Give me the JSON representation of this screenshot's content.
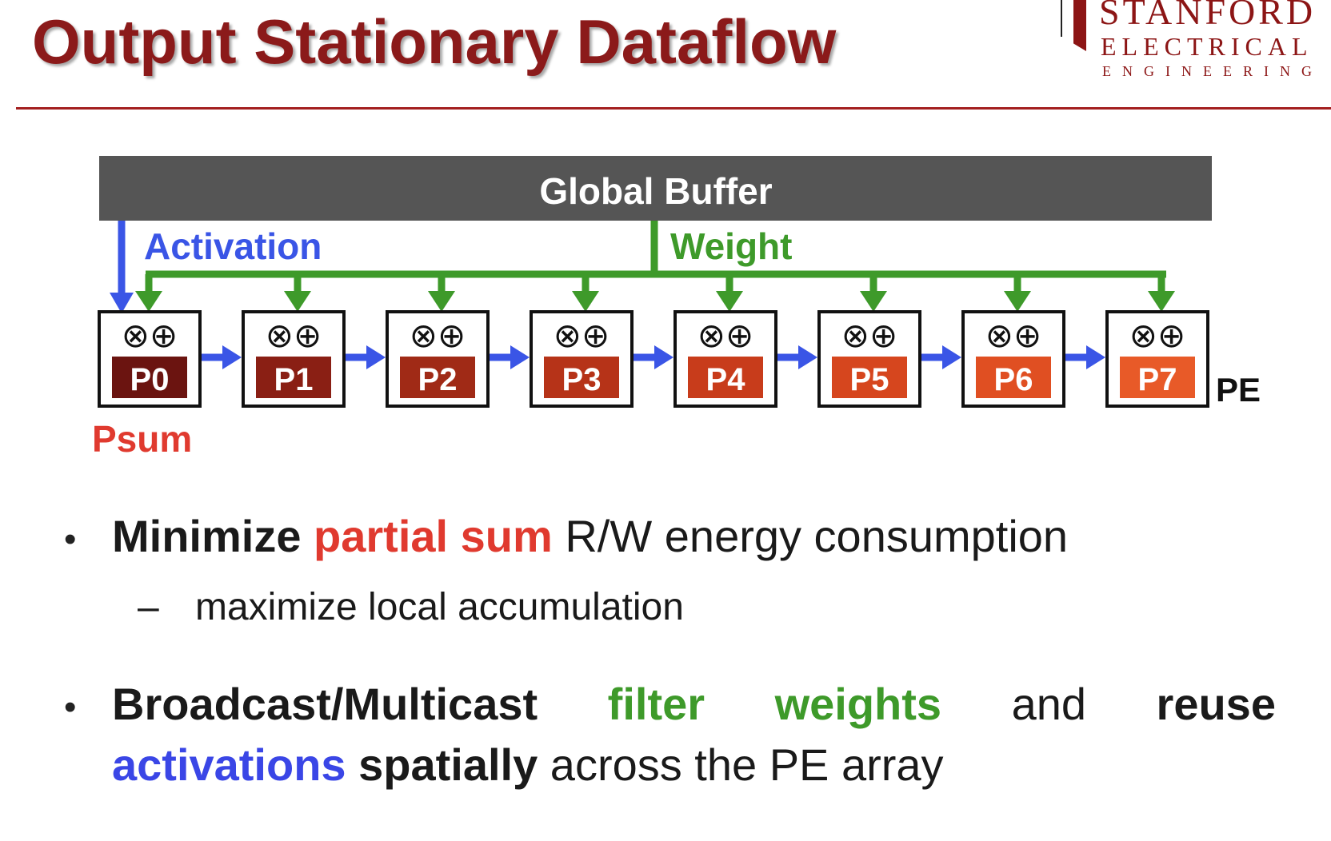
{
  "slide": {
    "title": "Output Stationary Dataflow"
  },
  "logo": {
    "line1": "STANFORD",
    "line2": "ELECTRICAL",
    "line3": "ENGINEERING"
  },
  "diagram": {
    "buffer_label": "Global Buffer",
    "activation_label": "Activation",
    "weight_label": "Weight",
    "psum_label": "Psum",
    "pe_label": "PE",
    "pe_glyphs": "⊗⊕",
    "pes": [
      "P0",
      "P1",
      "P2",
      "P3",
      "P4",
      "P5",
      "P6",
      "P7"
    ],
    "pe_colors": [
      "#6b1410",
      "#8a1f14",
      "#a02a16",
      "#b63318",
      "#c83c1b",
      "#d6461e",
      "#e04f22",
      "#e85a28"
    ],
    "colors": {
      "buffer": "#555555",
      "activation": "#3a55e6",
      "weight": "#3e9a2a",
      "psum": "#e03a2f"
    }
  },
  "bullets": {
    "b1": {
      "bold_text": "Minimize",
      "highlight": "partial sum",
      "rest": "R/W energy consumption",
      "sub": "maximize local accumulation",
      "sub_dash": "–"
    },
    "b2": {
      "w1": "Broadcast/Multicast",
      "w2": "filter",
      "w3": "weights",
      "w4": "and",
      "w5": "reuse",
      "w6": "activations",
      "w7": "spatially",
      "w8": "across the PE array"
    },
    "dot": "•"
  }
}
